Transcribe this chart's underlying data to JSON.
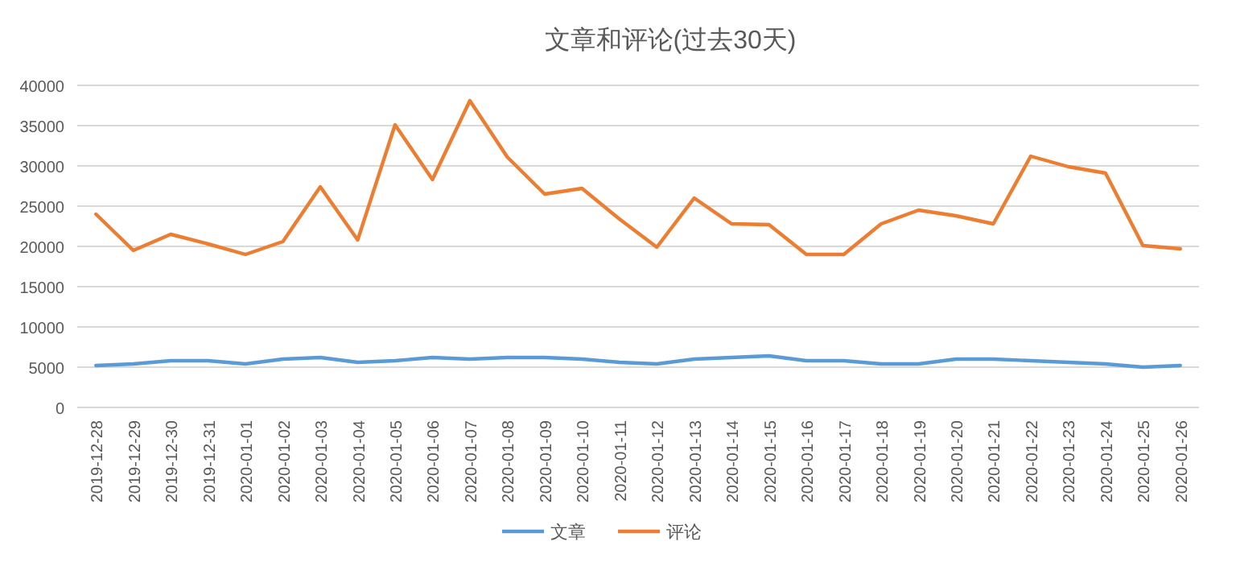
{
  "chart_data": {
    "type": "line",
    "title": "文章和评论(过去30天)",
    "categories": [
      "2019-12-28",
      "2019-12-29",
      "2019-12-30",
      "2019-12-31",
      "2020-01-01",
      "2020-01-02",
      "2020-01-03",
      "2020-01-04",
      "2020-01-05",
      "2020-01-06",
      "2020-01-07",
      "2020-01-08",
      "2020-01-09",
      "2020-01-10",
      "2020-01-11",
      "2020-01-12",
      "2020-01-13",
      "2020-01-14",
      "2020-01-15",
      "2020-01-16",
      "2020-01-17",
      "2020-01-18",
      "2020-01-19",
      "2020-01-20",
      "2020-01-21",
      "2020-01-22",
      "2020-01-23",
      "2020-01-24",
      "2020-01-25",
      "2020-01-26"
    ],
    "series": [
      {
        "name": "文章",
        "color": "#5b9bd5",
        "values": [
          5200,
          5400,
          5800,
          5800,
          5400,
          6000,
          6200,
          5600,
          5800,
          6200,
          6000,
          6200,
          6200,
          6000,
          5600,
          5400,
          6000,
          6200,
          6400,
          5800,
          5800,
          5400,
          5400,
          6000,
          6000,
          5800,
          5600,
          5400,
          5000,
          5200
        ]
      },
      {
        "name": "评论",
        "color": "#ed7d31",
        "values": [
          24000,
          19500,
          21500,
          20300,
          19000,
          20600,
          27400,
          20800,
          35100,
          28300,
          38100,
          31100,
          26500,
          27200,
          23400,
          19900,
          26000,
          22800,
          22700,
          19000,
          19000,
          22800,
          24500,
          23800,
          22800,
          31200,
          29900,
          29100,
          20100,
          19700
        ]
      }
    ],
    "ylim": [
      0,
      40000
    ],
    "yticks": [
      0,
      5000,
      10000,
      15000,
      20000,
      25000,
      30000,
      35000,
      40000
    ],
    "grid": "y",
    "legend": "bottom",
    "marker": "none",
    "line_style": "solid"
  }
}
